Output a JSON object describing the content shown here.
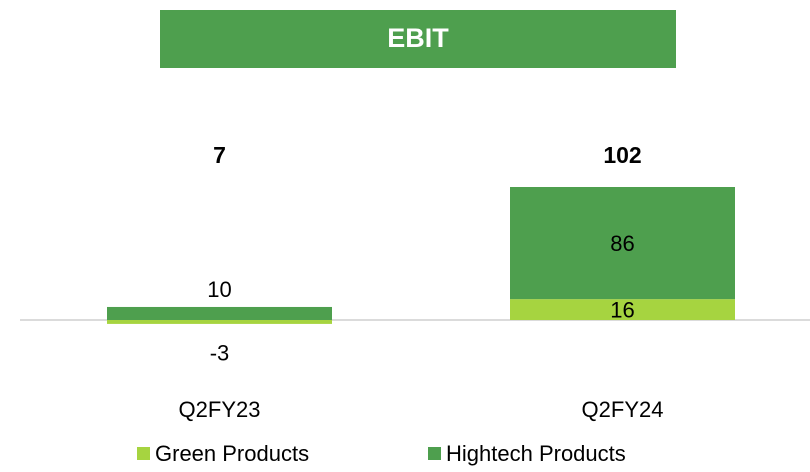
{
  "chart_data": {
    "type": "stacked_bar",
    "title": "EBIT",
    "categories": [
      "Q2FY23",
      "Q2FY24"
    ],
    "series": [
      {
        "name": "Green Products",
        "color": "#a6d440",
        "values": [
          -3,
          16
        ]
      },
      {
        "name": "Hightech Products",
        "color": "#4e9f4e",
        "values": [
          10,
          86
        ]
      }
    ],
    "totals": [
      7,
      102
    ],
    "legend": "bottom"
  }
}
